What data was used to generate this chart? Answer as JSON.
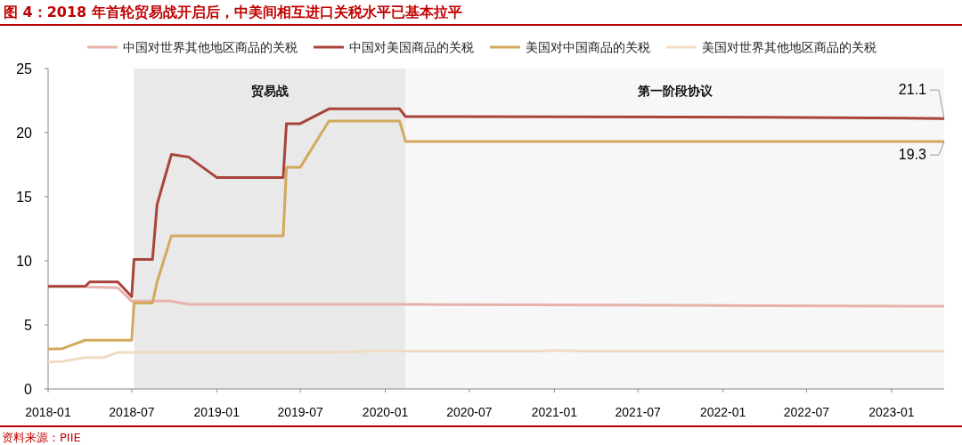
{
  "chart_data": {
    "type": "line",
    "title": "图 4：2018 年首轮贸易战开启后，中美间相互进口关税水平已基本拉平",
    "legend": "top",
    "xlim": [
      "2018-01-01",
      "2023-04-25"
    ],
    "xticks": [
      "2018-01",
      "2018-07",
      "2019-01",
      "2019-07",
      "2020-01",
      "2020-07",
      "2021-01",
      "2021-07",
      "2022-01",
      "2022-07",
      "2023-01"
    ],
    "ylim": [
      0,
      25
    ],
    "yticks": [
      0,
      5,
      10,
      15,
      20,
      25
    ],
    "bands": [
      {
        "axis": "x",
        "from": "2018-07-06",
        "to": "2020-02-14",
        "label": "贸易战",
        "color": "#e9e9e9"
      },
      {
        "axis": "x",
        "from": "2020-02-14",
        "to": "2023-04-25",
        "label": "第一阶段协议",
        "color": "#f7f7f7"
      }
    ],
    "series": [
      {
        "name": "中国对世界其他地区商品的关税",
        "color": "#e6b2ab",
        "x": [
          "2018-01-01",
          "2018-03-22",
          "2018-04-01",
          "2018-06-01",
          "2018-07-01",
          "2018-09-25",
          "2018-11-01",
          "2020-02-14",
          "2022-04-01",
          "2023-04-25"
        ],
        "values": [
          8.0,
          8.0,
          7.95,
          7.9,
          6.85,
          6.85,
          6.6,
          6.6,
          6.5,
          6.45
        ]
      },
      {
        "name": "中国对美国商品的关税",
        "color": "#a8443a",
        "x": [
          "2018-01-01",
          "2018-03-22",
          "2018-04-01",
          "2018-06-01",
          "2018-07-01",
          "2018-07-06",
          "2018-08-15",
          "2018-08-25",
          "2018-09-25",
          "2018-11-01",
          "2019-01-01",
          "2019-05-25",
          "2019-06-01",
          "2019-07-01",
          "2019-09-01",
          "2020-02-01",
          "2020-02-14",
          "2022-04-01",
          "2023-04-25"
        ],
        "values": [
          8.0,
          8.0,
          8.35,
          8.35,
          7.2,
          10.1,
          10.1,
          14.4,
          18.3,
          18.1,
          16.5,
          16.5,
          20.7,
          20.7,
          21.85,
          21.85,
          21.25,
          21.2,
          21.1
        ]
      },
      {
        "name": "美国对中国商品的关税",
        "color": "#d2a95d",
        "x": [
          "2018-01-01",
          "2018-02-01",
          "2018-03-22",
          "2018-07-01",
          "2018-07-06",
          "2018-08-15",
          "2018-08-25",
          "2018-09-25",
          "2019-05-25",
          "2019-06-01",
          "2019-07-01",
          "2019-09-01",
          "2020-02-01",
          "2020-02-14",
          "2023-04-25"
        ],
        "values": [
          3.1,
          3.15,
          3.8,
          3.8,
          6.7,
          6.7,
          8.35,
          11.95,
          11.95,
          17.3,
          17.3,
          20.9,
          20.9,
          19.3,
          19.3
        ]
      },
      {
        "name": "美国对世界其他地区商品的关税",
        "color": "#efdcc3",
        "x": [
          "2018-01-01",
          "2018-02-01",
          "2018-03-22",
          "2018-05-01",
          "2018-06-01",
          "2019-09-01",
          "2019-12-01",
          "2020-12-01",
          "2021-01-01",
          "2021-03-01",
          "2023-04-25"
        ],
        "values": [
          2.1,
          2.15,
          2.45,
          2.45,
          2.85,
          2.85,
          2.95,
          2.95,
          3.0,
          2.95,
          2.95
        ]
      }
    ],
    "annotations": [
      {
        "text": "21.1",
        "x": "2023-04-25",
        "y": 21.1
      },
      {
        "text": "19.3",
        "x": "2023-04-25",
        "y": 19.3
      },
      "资料来源：PIIE"
    ]
  }
}
